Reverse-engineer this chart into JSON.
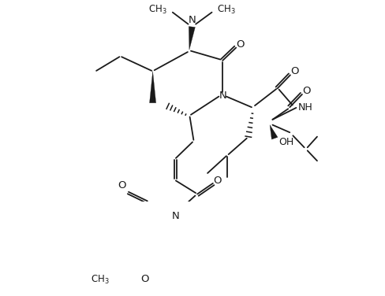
{
  "bg_color": "#ffffff",
  "line_color": "#1a1a1a",
  "line_width": 1.3,
  "figsize": [
    4.88,
    3.76
  ],
  "dpi": 100,
  "xlim": [
    0,
    488
  ],
  "ylim": [
    0,
    376
  ]
}
